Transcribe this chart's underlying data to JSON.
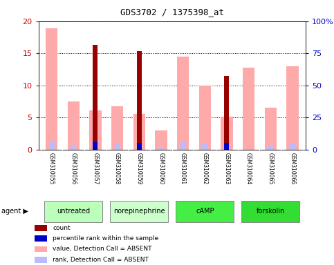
{
  "title": "GDS3702 / 1375398_at",
  "samples": [
    "GSM310055",
    "GSM310056",
    "GSM310057",
    "GSM310058",
    "GSM310059",
    "GSM310060",
    "GSM310061",
    "GSM310062",
    "GSM310063",
    "GSM310064",
    "GSM310065",
    "GSM310066"
  ],
  "agents": [
    {
      "label": "untreated",
      "start": 0,
      "end": 3,
      "color": "#bbffbb"
    },
    {
      "label": "norepinephrine",
      "start": 3,
      "end": 6,
      "color": "#ccffcc"
    },
    {
      "label": "cAMP",
      "start": 6,
      "end": 9,
      "color": "#44ee44"
    },
    {
      "label": "forskolin",
      "start": 9,
      "end": 12,
      "color": "#33dd33"
    }
  ],
  "count": [
    null,
    null,
    16.3,
    null,
    15.3,
    null,
    null,
    null,
    11.5,
    null,
    null,
    null
  ],
  "value_absent": [
    18.9,
    7.5,
    6.1,
    6.8,
    5.6,
    3.0,
    14.5,
    10.0,
    5.1,
    12.8,
    6.6,
    13.0
  ],
  "rank_absent": [
    6.5,
    3.5,
    null,
    4.2,
    null,
    1.8,
    5.8,
    4.3,
    null,
    null,
    3.9,
    5.3
  ],
  "percentile_rank": [
    null,
    null,
    6.1,
    null,
    5.6,
    null,
    null,
    null,
    5.1,
    null,
    null,
    null
  ],
  "ylim_left": [
    0,
    20
  ],
  "ylim_right": [
    0,
    100
  ],
  "yticks_left": [
    0,
    5,
    10,
    15,
    20
  ],
  "yticks_right": [
    0,
    25,
    50,
    75,
    100
  ],
  "left_tick_color": "#cc0000",
  "right_tick_color": "#0000cc",
  "count_color": "#990000",
  "percentile_color": "#0000cc",
  "value_absent_color": "#ffaaaa",
  "rank_absent_color": "#bbbbff",
  "bg_xaxis": "#cccccc",
  "bar_wide": 0.55,
  "bar_narrow": 0.25,
  "bar_count": 0.22
}
